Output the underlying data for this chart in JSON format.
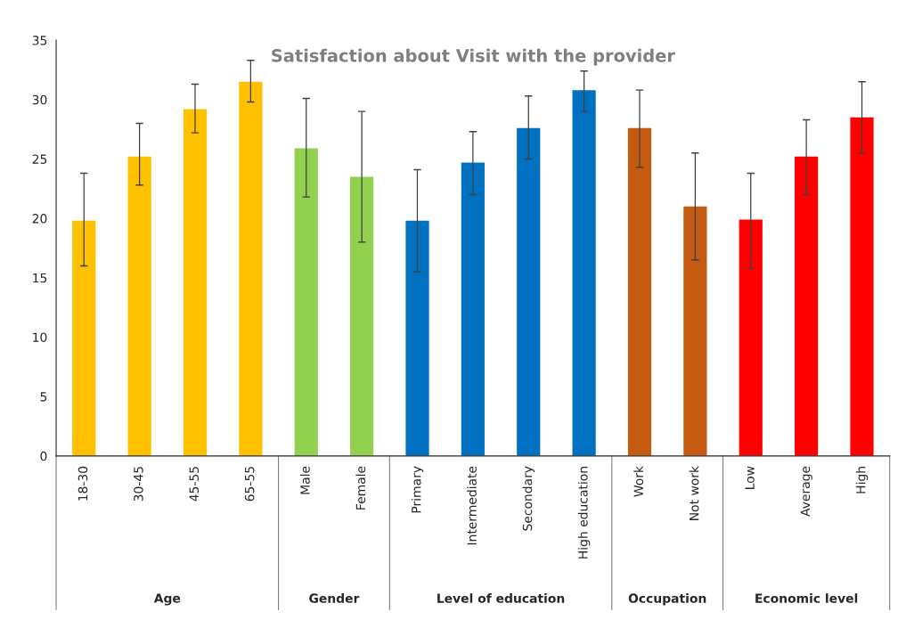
{
  "chart_data": {
    "type": "bar",
    "title": "Satisfaction about Visit with the provider",
    "categories": [
      "18-30",
      "30-45",
      "45-55",
      "65-55",
      "Male",
      "Female",
      "Primary",
      "Intermediate",
      "Secondary",
      "High education",
      "Work",
      "Not work",
      "Low",
      "Average",
      "High"
    ],
    "values": [
      19.8,
      25.2,
      29.2,
      31.5,
      25.9,
      23.5,
      19.8,
      24.7,
      27.6,
      30.8,
      27.6,
      21.0,
      19.9,
      25.2,
      28.5
    ],
    "errors": [
      [
        16.0,
        23.8
      ],
      [
        22.8,
        28.0
      ],
      [
        27.2,
        31.3
      ],
      [
        29.8,
        33.3
      ],
      [
        21.8,
        30.1
      ],
      [
        18.0,
        29.0
      ],
      [
        15.5,
        24.1
      ],
      [
        22.0,
        27.3
      ],
      [
        25.0,
        30.3
      ],
      [
        29.0,
        32.4
      ],
      [
        24.3,
        30.8
      ],
      [
        16.5,
        25.5
      ],
      [
        15.8,
        23.8
      ],
      [
        22.0,
        28.3
      ],
      [
        25.5,
        31.5
      ]
    ],
    "colors": [
      "#ffc000",
      "#ffc000",
      "#ffc000",
      "#ffc000",
      "#92d050",
      "#92d050",
      "#0070c0",
      "#0070c0",
      "#0070c0",
      "#0070c0",
      "#c55a11",
      "#c55a11",
      "#ff0000",
      "#ff0000",
      "#ff0000"
    ],
    "annotations": [
      "Age",
      "Gender",
      "Level of education",
      "Occupation",
      "Economic level"
    ],
    "ylim": [
      0,
      35
    ],
    "yticks": [
      0,
      5,
      10,
      15,
      20,
      25,
      30,
      35
    ],
    "grid": false
  }
}
